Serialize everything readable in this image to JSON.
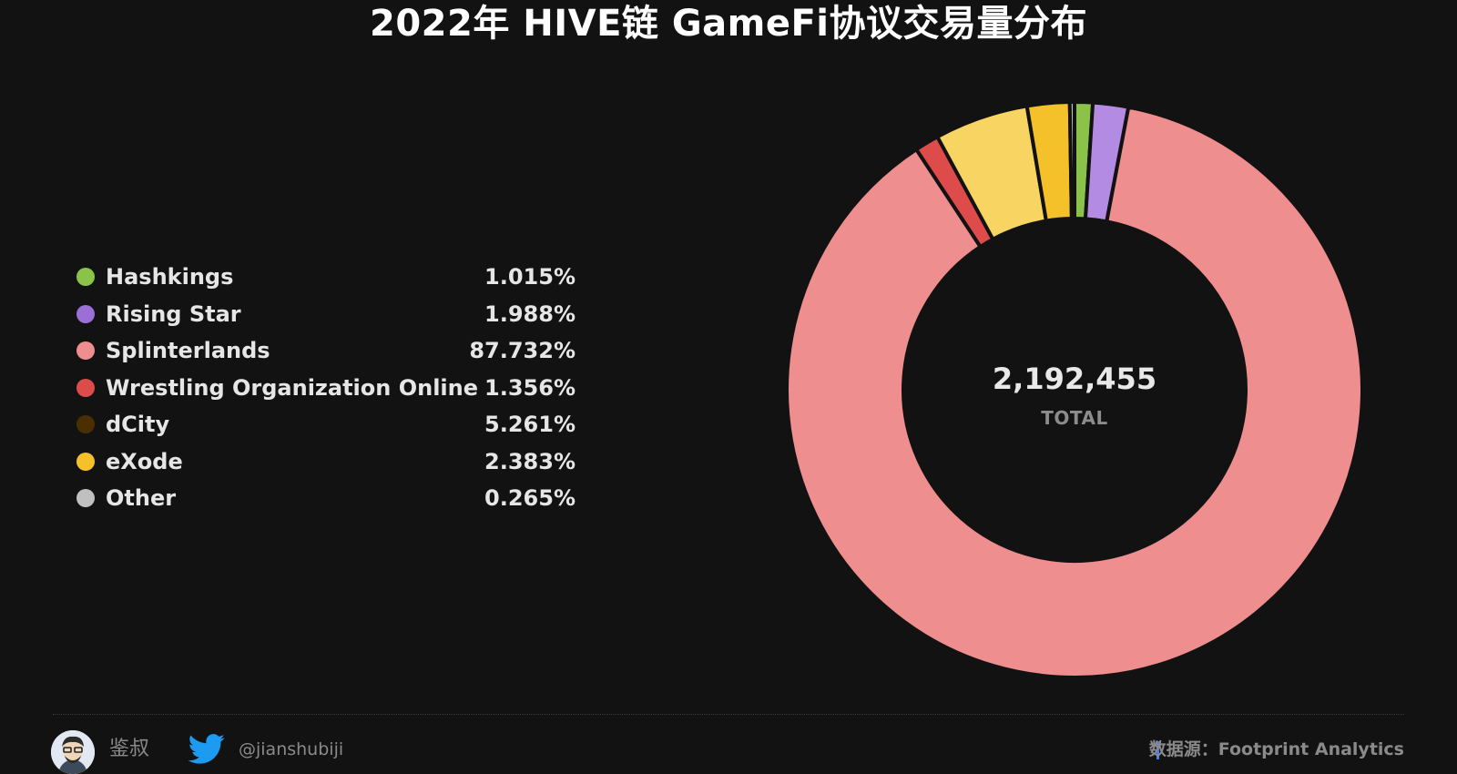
{
  "chart_data": {
    "type": "pie",
    "title": "2022年 HIVE链 GameFi协议交易量分布",
    "center_value": "2,192,455",
    "center_label": "TOTAL",
    "legend_placement": "left",
    "slices": [
      {
        "name": "Hashkings",
        "value": 1.015,
        "label": "1.015%",
        "color": "#8bc34a"
      },
      {
        "name": "Rising Star",
        "value": 1.988,
        "label": "1.988%",
        "color": "#b38be3"
      },
      {
        "name": "Splinterlands",
        "value": 87.732,
        "label": "87.732%",
        "color": "#ef8e8e"
      },
      {
        "name": "Wrestling Organization Online",
        "value": 1.356,
        "label": "1.356%",
        "color": "#dd4b4b"
      },
      {
        "name": "dCity",
        "value": 5.261,
        "label": "5.261%",
        "color": "#f8d563"
      },
      {
        "name": "eXode",
        "value": 2.383,
        "label": "2.383%",
        "color": "#f5c12a"
      },
      {
        "name": "Other",
        "value": 0.265,
        "label": "0.265%",
        "color": "#c0c0c0"
      }
    ],
    "legend_dot_colors": [
      "#8bc34a",
      "#9b6fd6",
      "#ef8e8e",
      "#dd4b4b",
      "#4a3000",
      "#f5c12a",
      "#c0c0c0"
    ]
  },
  "footer": {
    "author": "鉴叔",
    "twitter_handle": "@jianshubiji",
    "source": "数据源：Footprint  Analytics"
  }
}
